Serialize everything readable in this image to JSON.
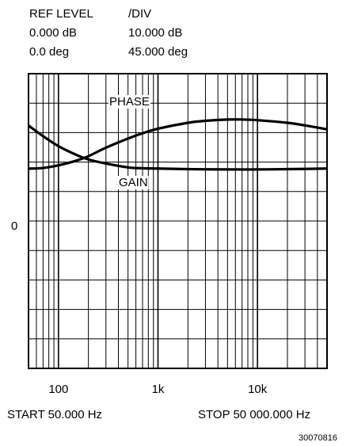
{
  "header": {
    "ref_level_label": "REF LEVEL",
    "div_label": "/DIV",
    "gain_ref": "0.000 dB",
    "gain_div": "10.000 dB",
    "phase_ref": "0.0 deg",
    "phase_div": "45.000 deg"
  },
  "footer": {
    "start": "START  50.000 Hz",
    "stop": "STOP  50 000.000 Hz"
  },
  "figure_number": "30070816",
  "chart_data": {
    "type": "line",
    "x_scale": "log",
    "xlim": [
      50,
      50000
    ],
    "x_tick_labels": [
      {
        "value": 100,
        "label": "100"
      },
      {
        "value": 1000,
        "label": "1k"
      },
      {
        "value": 10000,
        "label": "10k"
      }
    ],
    "y_zero_label": "0",
    "grid": true,
    "y_divisions": 10,
    "series": [
      {
        "name": "PHASE",
        "unit": "deg",
        "x": [
          50,
          70,
          100,
          150,
          200,
          300,
          500,
          700,
          1000,
          2000,
          3000,
          5000,
          7000,
          10000,
          20000,
          30000,
          50000
        ],
        "y": [
          80,
          81,
          85,
          92,
          99,
          112,
          126,
          134,
          141,
          150,
          153,
          155,
          155,
          154,
          150,
          146,
          140
        ]
      },
      {
        "name": "GAIN",
        "unit": "dB",
        "x": [
          50,
          70,
          100,
          150,
          200,
          300,
          500,
          700,
          1000,
          2000,
          5000,
          10000,
          20000,
          50000
        ],
        "y": [
          32.4,
          28.8,
          25.4,
          22.5,
          20.9,
          19.5,
          18.2,
          17.9,
          17.8,
          17.6,
          17.5,
          17.5,
          17.6,
          17.8
        ]
      }
    ]
  }
}
